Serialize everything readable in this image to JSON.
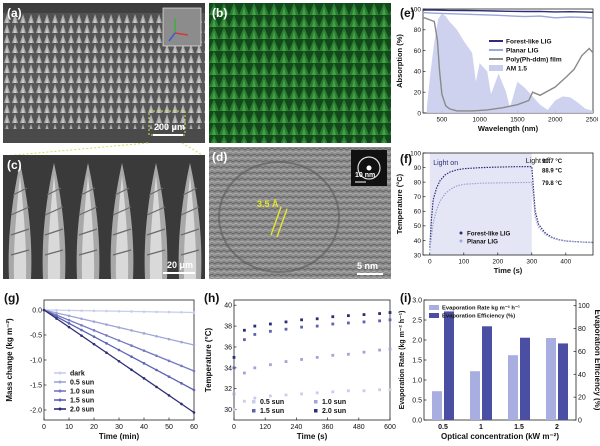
{
  "figure": {
    "panels": {
      "a": {
        "label": "(a)",
        "scale_bar": "200 μm"
      },
      "b": {
        "label": "(b)"
      },
      "c": {
        "label": "(c)",
        "scale_bar": "20 μm"
      },
      "d": {
        "label": "(d)",
        "lattice_label": "3.5 Å",
        "scale_bar": "5 nm",
        "inset_scale": "10 nm"
      },
      "e": {
        "label": "(e)"
      },
      "f": {
        "label": "(f)"
      },
      "g": {
        "label": "(g)"
      },
      "h": {
        "label": "(h)"
      },
      "i": {
        "label": "(i)"
      }
    },
    "colors": {
      "dark_blue": "#2c2d74",
      "mid_blue": "#5b63b3",
      "light_blue": "#9ea5d8",
      "pale_blue": "#c9cdec",
      "gray": "#8a8a8a"
    }
  },
  "chart_data": [
    {
      "id": "e",
      "type": "line",
      "xlabel": "Wavelength (nm)",
      "ylabel": "Absorption (%)",
      "xlim": [
        250,
        2500
      ],
      "ylim": [
        0,
        100
      ],
      "xticks": [
        "500",
        "1000",
        "1500",
        "2000",
        "2500"
      ],
      "yticks": [
        "0",
        "20",
        "40",
        "60",
        "80",
        "100"
      ],
      "legend": "top-right",
      "series": [
        {
          "name": "Forest-like LIG",
          "color": "#2c2d74",
          "x": [
            250,
            400,
            600,
            800,
            1000,
            1200,
            1400,
            1600,
            1800,
            2000,
            2200,
            2400,
            2500
          ],
          "y": [
            99,
            99,
            98.7,
            98.6,
            98.4,
            98.1,
            97.8,
            97.6,
            97.7,
            97.2,
            97.4,
            97.0,
            96.8
          ]
        },
        {
          "name": "Planar LIG",
          "color": "#9ea5d8",
          "x": [
            250,
            400,
            600,
            800,
            1000,
            1200,
            1400,
            1600,
            1800,
            2000,
            2200,
            2400,
            2500
          ],
          "y": [
            96.5,
            96,
            95.5,
            95,
            94.5,
            94,
            93.4,
            92.7,
            93.2,
            91.5,
            92.3,
            91.8,
            91.2
          ]
        },
        {
          "name": "Poly(Ph-ddm) film",
          "color": "#8a8a8a",
          "x": [
            250,
            400,
            440,
            470,
            500,
            550,
            600,
            700,
            900,
            1100,
            1300,
            1500,
            1650,
            1700,
            1800,
            2000,
            2150,
            2250,
            2350,
            2450,
            2500
          ],
          "y": [
            92,
            88,
            70,
            40,
            18,
            7,
            4,
            2,
            2,
            3,
            5,
            8,
            12,
            20,
            17,
            25,
            35,
            42,
            55,
            62,
            58
          ]
        },
        {
          "name": "AM 1.5",
          "color": "#c9cdec",
          "x": [
            300,
            350,
            400,
            450,
            500,
            550,
            600,
            700,
            800,
            900,
            950,
            1000,
            1100,
            1150,
            1250,
            1350,
            1400,
            1500,
            1600,
            1800,
            1900,
            2000,
            2100,
            2200,
            2300,
            2400,
            2500
          ],
          "y": [
            5,
            40,
            68,
            90,
            96,
            93,
            88,
            80,
            68,
            58,
            30,
            48,
            40,
            18,
            38,
            20,
            5,
            30,
            24,
            8,
            3,
            12,
            16,
            15,
            10,
            4,
            2
          ]
        }
      ]
    },
    {
      "id": "f",
      "type": "line",
      "xlabel": "Time (s)",
      "ylabel": "Temperature (°C)",
      "xlim": [
        -20,
        480
      ],
      "ylim": [
        30,
        100
      ],
      "xticks": [
        "0",
        "100",
        "200",
        "300",
        "400"
      ],
      "yticks": [
        "30",
        "40",
        "50",
        "60",
        "70",
        "80",
        "90",
        "100"
      ],
      "annotations": [
        "Light on",
        "Light off",
        "90.7 °C",
        "88.9 °C",
        "79.8 °C"
      ],
      "legend": "bottom-left",
      "series": [
        {
          "name": "Forest-like LIG",
          "color": "#2c2d74",
          "x": [
            0,
            5,
            10,
            20,
            30,
            45,
            60,
            80,
            100,
            150,
            200,
            250,
            300,
            305,
            310,
            320,
            340,
            360,
            380,
            400,
            440,
            480
          ],
          "y": [
            35,
            55,
            68,
            76,
            81,
            85,
            87,
            88.5,
            89.2,
            90,
            90.3,
            90.6,
            90.7,
            75,
            60,
            51,
            45,
            42,
            40.5,
            39.6,
            39,
            38.6
          ]
        },
        {
          "name": "Planar LIG",
          "color": "#9ea5d8",
          "x": [
            0,
            5,
            10,
            20,
            30,
            45,
            60,
            80,
            100,
            150,
            200,
            250,
            300,
            305,
            310,
            320,
            340,
            360,
            380,
            400,
            440,
            480
          ],
          "y": [
            33,
            43,
            52,
            61,
            67,
            72,
            75,
            77.5,
            78.5,
            79.3,
            79.5,
            79.7,
            79.8,
            68,
            56,
            49,
            44,
            41.5,
            40.2,
            39.5,
            39,
            38.5
          ]
        }
      ]
    },
    {
      "id": "g",
      "type": "line",
      "xlabel": "Time (min)",
      "ylabel": "Mass change (kg m⁻²)",
      "xlim": [
        0,
        60
      ],
      "ylim": [
        -2.2,
        0.2
      ],
      "xticks": [
        "0",
        "10",
        "20",
        "30",
        "40",
        "50",
        "60"
      ],
      "yticks": [
        "0.0",
        "-0.5",
        "-1.0",
        "-1.5",
        "-2.0"
      ],
      "legend": "bottom-left",
      "series": [
        {
          "name": "dark",
          "color": "#c9cdec",
          "x": [
            0,
            60
          ],
          "y": [
            0,
            -0.05
          ]
        },
        {
          "name": "0.5 sun",
          "color": "#9ea5d8",
          "x": [
            0,
            60
          ],
          "y": [
            0,
            -0.7
          ]
        },
        {
          "name": "1.0 sun",
          "color": "#747ac2",
          "x": [
            0,
            60
          ],
          "y": [
            0,
            -1.22
          ]
        },
        {
          "name": "1.5 sun",
          "color": "#5b63b3",
          "x": [
            0,
            60
          ],
          "y": [
            0,
            -1.6
          ]
        },
        {
          "name": "2.0 sun",
          "color": "#2c2d74",
          "x": [
            0,
            60
          ],
          "y": [
            0,
            -2.05
          ]
        }
      ]
    },
    {
      "id": "h",
      "type": "scatter",
      "xlabel": "Time (s)",
      "ylabel": "Temperature (°C)",
      "xlim": [
        0,
        600
      ],
      "ylim": [
        29,
        40.5
      ],
      "xticks": [
        "0",
        "120",
        "240",
        "360",
        "480",
        "600"
      ],
      "yticks": [
        "30",
        "32",
        "34",
        "36",
        "38",
        "40"
      ],
      "legend": "bottom-center",
      "series": [
        {
          "name": "0.5 sun",
          "color": "#c9cdec",
          "x": [
            0,
            40,
            80,
            140,
            200,
            260,
            320,
            380,
            440,
            500,
            560,
            600
          ],
          "y": [
            30,
            30.8,
            31.1,
            31.3,
            31.4,
            31.5,
            31.6,
            31.7,
            31.8,
            31.8,
            31.9,
            31.9
          ]
        },
        {
          "name": "1.0 sun",
          "color": "#9ea5d8",
          "x": [
            0,
            40,
            80,
            140,
            200,
            260,
            320,
            380,
            440,
            500,
            560,
            600
          ],
          "y": [
            31.5,
            33.5,
            34,
            34.3,
            34.6,
            34.8,
            35,
            35.2,
            35.3,
            35.5,
            35.7,
            35.8
          ]
        },
        {
          "name": "1.5 sun",
          "color": "#5b63b3",
          "x": [
            0,
            40,
            80,
            140,
            200,
            260,
            320,
            380,
            440,
            500,
            560,
            600
          ],
          "y": [
            34,
            36.7,
            37.2,
            37.5,
            37.7,
            37.9,
            38,
            38.2,
            38.3,
            38.4,
            38.5,
            38.6
          ]
        },
        {
          "name": "2.0 sun",
          "color": "#2c2d74",
          "x": [
            0,
            40,
            80,
            140,
            200,
            260,
            320,
            380,
            440,
            500,
            560,
            600
          ],
          "y": [
            35,
            37.6,
            38,
            38.2,
            38.4,
            38.6,
            38.7,
            38.9,
            39,
            39.1,
            39.2,
            39.3
          ]
        }
      ]
    },
    {
      "id": "i",
      "type": "bar",
      "xlabel": "Optical concentration (kW m⁻²)",
      "ylabel": "Evaporation Rate (kg m⁻² h⁻¹)",
      "y2label": "Evaporation Efficiency (%)",
      "categories": [
        "0.5",
        "1",
        "1.5",
        "2"
      ],
      "ylim": [
        0,
        3.0
      ],
      "y2lim": [
        0,
        105
      ],
      "yticks": [
        "0.0",
        "0.5",
        "1.0",
        "1.5",
        "2.0",
        "2.5",
        "3.0"
      ],
      "y2ticks": [
        "0",
        "20",
        "40",
        "60",
        "80",
        "100"
      ],
      "legend": "top-left",
      "series": [
        {
          "name": "Evaporation Rate kg m⁻² h⁻¹",
          "color": "#a9aee0",
          "axis": "left",
          "values": [
            0.72,
            1.22,
            1.62,
            2.05
          ]
        },
        {
          "name": "Evaporation Efficiency (%)",
          "color": "#4a4fa3",
          "axis": "right",
          "values": [
            95,
            82,
            72,
            67
          ]
        }
      ]
    }
  ]
}
